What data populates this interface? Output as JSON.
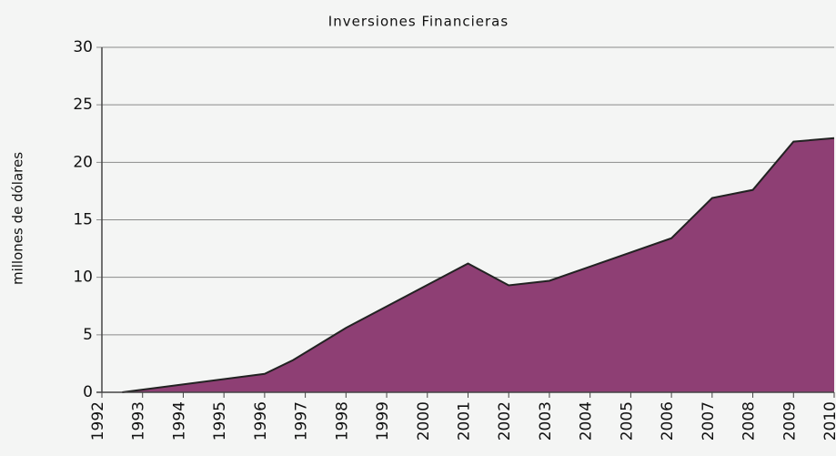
{
  "chart_data": {
    "type": "area",
    "title": "Inversiones Financieras",
    "y_label": "millones de dólares",
    "x": [
      1992.5,
      1996,
      1996.7,
      1998,
      2001,
      2002,
      2003,
      2006,
      2007,
      2008,
      2009,
      2010
    ],
    "values": [
      0,
      1.6,
      2.8,
      5.6,
      11.2,
      9.3,
      9.7,
      13.4,
      16.9,
      17.6,
      21.8,
      22.1
    ],
    "color": "#8e3f74",
    "xlim": [
      1992,
      2010
    ],
    "xticks": [
      1992,
      1993,
      1994,
      1995,
      1996,
      1997,
      1998,
      1999,
      2000,
      2001,
      2002,
      2003,
      2004,
      2005,
      2006,
      2007,
      2008,
      2009,
      2010
    ],
    "ylim": [
      0,
      30
    ],
    "yticks": [
      0,
      5,
      10,
      15,
      20,
      25,
      30
    ],
    "grid": true
  }
}
